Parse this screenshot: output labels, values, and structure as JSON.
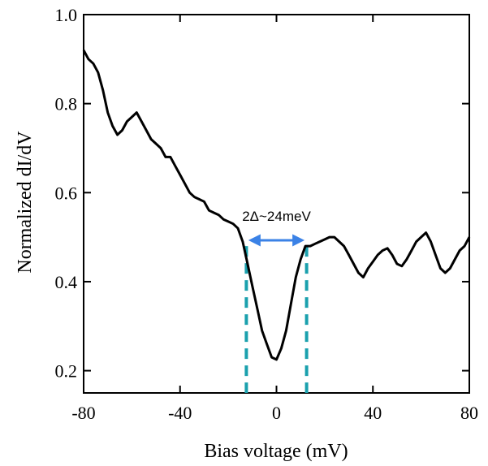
{
  "chart_data": {
    "type": "line",
    "xlabel": "Bias voltage (mV)",
    "ylabel": "Normalized dI/dV",
    "xlim": [
      -80,
      80
    ],
    "ylim": [
      0.15,
      1.0
    ],
    "xticks": [
      -80,
      -40,
      0,
      40,
      80
    ],
    "yticks": [
      0.2,
      0.4,
      0.6,
      0.8,
      1.0
    ],
    "xtick_labels": [
      "-80",
      "-40",
      "0",
      "40",
      "80"
    ],
    "ytick_labels": [
      "0.2",
      "0.4",
      "0.6",
      "0.8",
      "1.0"
    ],
    "grid": false,
    "series": [
      {
        "color": "#000000",
        "x": [
          -80,
          -78,
          -76,
          -74,
          -72,
          -70,
          -68,
          -66,
          -64,
          -62,
          -60,
          -58,
          -56,
          -54,
          -52,
          -50,
          -48,
          -46,
          -44,
          -42,
          -40,
          -38,
          -36,
          -34,
          -32,
          -30,
          -28,
          -26,
          -24,
          -22,
          -20,
          -18,
          -16,
          -14,
          -12,
          -10,
          -8,
          -6,
          -4,
          -2,
          0,
          2,
          4,
          6,
          8,
          10,
          12,
          14,
          16,
          18,
          20,
          22,
          24,
          26,
          28,
          30,
          32,
          34,
          36,
          38,
          40,
          42,
          44,
          46,
          48,
          50,
          52,
          54,
          56,
          58,
          60,
          62,
          64,
          66,
          68,
          70,
          72,
          74,
          76,
          78,
          80
        ],
        "y": [
          0.92,
          0.9,
          0.89,
          0.87,
          0.83,
          0.78,
          0.75,
          0.73,
          0.74,
          0.76,
          0.77,
          0.78,
          0.76,
          0.74,
          0.72,
          0.71,
          0.7,
          0.68,
          0.68,
          0.66,
          0.64,
          0.62,
          0.6,
          0.59,
          0.585,
          0.58,
          0.56,
          0.555,
          0.55,
          0.54,
          0.535,
          0.53,
          0.52,
          0.49,
          0.44,
          0.39,
          0.34,
          0.29,
          0.26,
          0.23,
          0.225,
          0.25,
          0.29,
          0.35,
          0.41,
          0.45,
          0.48,
          0.48,
          0.485,
          0.49,
          0.495,
          0.5,
          0.5,
          0.49,
          0.48,
          0.46,
          0.44,
          0.42,
          0.41,
          0.43,
          0.445,
          0.46,
          0.47,
          0.475,
          0.46,
          0.44,
          0.435,
          0.45,
          0.47,
          0.49,
          0.5,
          0.51,
          0.49,
          0.46,
          0.43,
          0.42,
          0.43,
          0.45,
          0.47,
          0.48,
          0.5
        ]
      }
    ],
    "annotations": [
      {
        "text": "2Δ~24meV",
        "x_start": -12,
        "x_end": 12,
        "y": 0.493,
        "arrow_color": "#3b82e6"
      }
    ],
    "vlines": [
      {
        "x": -12.5,
        "y_top": 0.48,
        "style": "dashed",
        "color": "#1aa0ad"
      },
      {
        "x": 12.5,
        "y_top": 0.48,
        "style": "dashed",
        "color": "#1aa0ad"
      }
    ]
  }
}
